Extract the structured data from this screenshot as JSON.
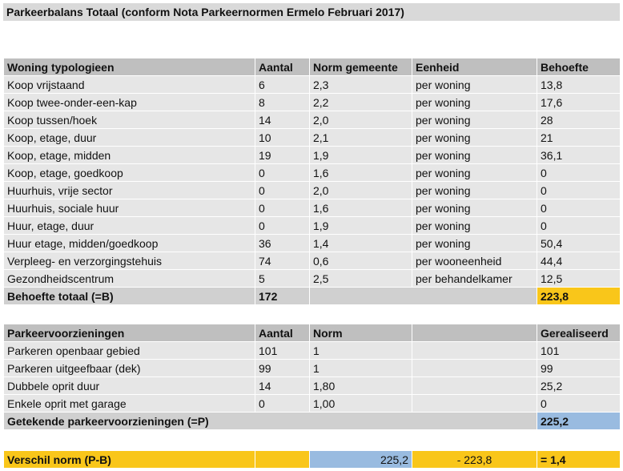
{
  "title": "Parkeerbalans Totaal (conform Nota Parkeernormen Ermelo Februari 2017)",
  "woningen": {
    "headers": [
      "Woning typologieen",
      "Aantal",
      "Norm gemeente",
      "Eenheid",
      "Behoefte"
    ],
    "rows": [
      [
        "Koop vrijstaand",
        "6",
        "2,3",
        "per woning",
        "13,8"
      ],
      [
        "Koop twee-onder-een-kap",
        "8",
        "2,2",
        "per woning",
        "17,6"
      ],
      [
        "Koop tussen/hoek",
        "14",
        "2,0",
        "per woning",
        "28"
      ],
      [
        "Koop, etage, duur",
        "10",
        "2,1",
        "per woning",
        "21"
      ],
      [
        "Koop, etage, midden",
        "19",
        "1,9",
        "per woning",
        "36,1"
      ],
      [
        "Koop, etage, goedkoop",
        "0",
        "1,6",
        "per woning",
        "0"
      ],
      [
        "Huurhuis, vrije sector",
        "0",
        "2,0",
        "per woning",
        "0"
      ],
      [
        "Huurhuis, sociale huur",
        "0",
        "1,6",
        "per woning",
        "0"
      ],
      [
        "Huur, etage, duur",
        "0",
        "1,9",
        "per woning",
        "0"
      ],
      [
        "Huur etage, midden/goedkoop",
        "36",
        "1,4",
        "per woning",
        "50,4"
      ],
      [
        "Verpleeg- en verzorgingstehuis",
        "74",
        "0,6",
        "per wooneenheid",
        "44,4"
      ],
      [
        "Gezondheidscentrum",
        "5",
        "2,5",
        "per behandelkamer",
        "12,5"
      ]
    ],
    "total": {
      "label": "Behoefte totaal (=B)",
      "aantal": "172",
      "behoefte": "223,8"
    }
  },
  "parkeer": {
    "headers": [
      "Parkeervoorzieningen",
      "Aantal",
      "Norm",
      "",
      "Gerealiseerd"
    ],
    "rows": [
      [
        "Parkeren openbaar gebied",
        "101",
        "1",
        "",
        "101"
      ],
      [
        "Parkeren uitgeefbaar (dek)",
        "99",
        "1",
        "",
        "99"
      ],
      [
        "Dubbele oprit duur",
        "14",
        "1,80",
        "",
        "25,2"
      ],
      [
        "Enkele oprit met garage",
        "0",
        "1,00",
        "",
        "0"
      ]
    ],
    "total": {
      "label": "Getekende parkeervoorzieningen (=P)",
      "gerealiseerd": "225,2"
    }
  },
  "verschil": {
    "label": "Verschil norm (P-B)",
    "p": "225,2",
    "b": "- 223,8",
    "result": "= 1,4"
  }
}
